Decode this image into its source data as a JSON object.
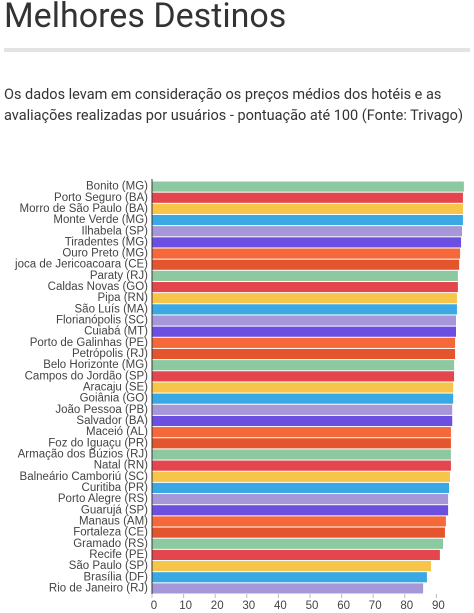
{
  "chart_data": {
    "type": "barh",
    "title": "Melhores Destinos",
    "subtitle": "Os dados levam em consideração os preços médios dos hotéis e as avaliações realizadas por usuários  - pontuação até 100 (Fonte: Trivago)",
    "categories": [
      "Bonito (MG)",
      "Porto Seguro (BA)",
      "Morro de São Paulo (BA)",
      "Monte Verde (MG)",
      "Ilhabela (SP)",
      "Tiradentes (MG)",
      "Ouro Preto (MG)",
      "joca de Jericoacoara (CE)",
      "Paraty (RJ)",
      "Caldas Novas (GO)",
      "Pipa (RN)",
      "São Luís (MA)",
      "Florianópolis (SC)",
      "Cuiabá (MT)",
      "Porto de Galinhas (PE)",
      "Petrópolis (RJ)",
      "Belo Horizonte (MG)",
      "Campos do Jordão (SP)",
      "Aracaju (SE)",
      "Goiânia (GO)",
      "João Pessoa (PB)",
      "Salvador (BA)",
      "Maceió (AL)",
      "Foz do Iguaçu (PR)",
      "Armação dos Búzios (RJ)",
      "Natal (RN)",
      "Balneário Camboriú (SC)",
      "Curitiba (PR)",
      "Porto Alegre (RS)",
      "Guarujá (SP)",
      "Manaus (AM)",
      "Fortaleza (CE)",
      "Gramado (RS)",
      "Recife (PE)",
      "São Paulo (SP)",
      "Brasília (DF)",
      "Rio de Janeiro (RJ)"
    ],
    "values": [
      98.7,
      98.4,
      98.4,
      98.4,
      98.1,
      97.8,
      97.5,
      97.2,
      96.8,
      96.8,
      96.5,
      96.5,
      96.2,
      96.2,
      95.9,
      95.9,
      95.6,
      95.6,
      95.3,
      95.3,
      95.0,
      95.0,
      94.6,
      94.6,
      94.6,
      94.6,
      94.3,
      94.0,
      93.7,
      93.7,
      93.0,
      92.7,
      92.1,
      91.1,
      88.3,
      87.0,
      85.8
    ],
    "colors": [
      "#8cc9a0",
      "#e4464e",
      "#f6c54a",
      "#3aa8e2",
      "#a597d8",
      "#6a4fe0",
      "#f5683a",
      "#e4552e"
    ],
    "xlim": [
      0,
      100
    ],
    "xticks": [
      0,
      10,
      20,
      30,
      40,
      50,
      60,
      70,
      80,
      90
    ]
  }
}
